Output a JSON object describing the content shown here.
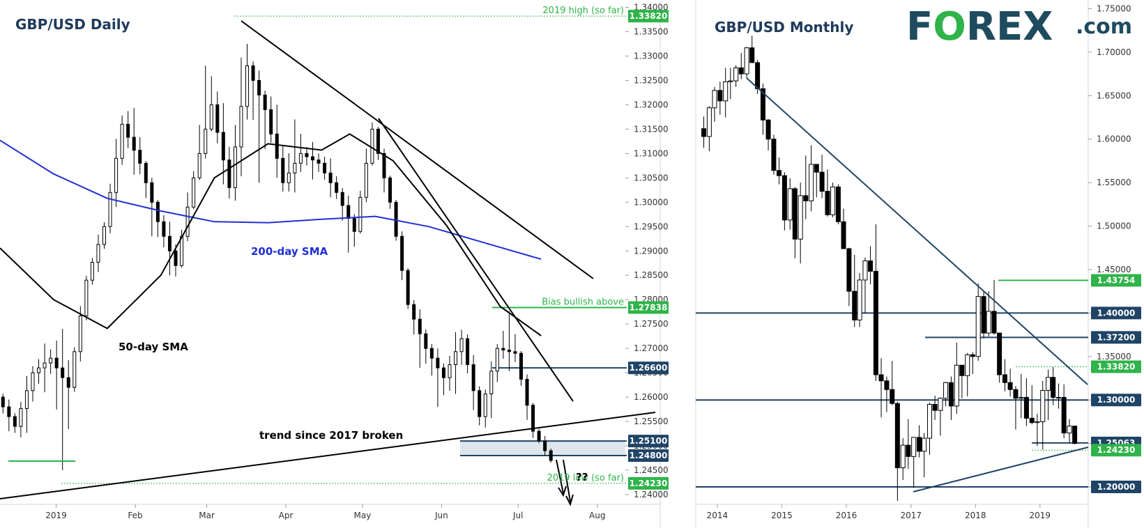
{
  "brand": {
    "logo_text": "FOREX",
    "logo_suffix": ".com",
    "color": "#1f4b5e",
    "accent": "#2fb34a"
  },
  "colors": {
    "green": "#2fb34a",
    "navy": "#1f4466",
    "sma200": "#1f2fd4",
    "black": "#000000",
    "support_zone": "#dfe5ec"
  },
  "chart_data": [
    {
      "type": "candlestick",
      "title": "GBP/USD Daily",
      "x_ticks": [
        "2019",
        "Feb",
        "Mar",
        "Apr",
        "May",
        "Jun",
        "Jul",
        "Aug"
      ],
      "y_ticks": [
        "1.34000",
        "1.33500",
        "1.33000",
        "1.32500",
        "1.32000",
        "1.31500",
        "1.31000",
        "1.30500",
        "1.30000",
        "1.29500",
        "1.29000",
        "1.28500",
        "1.28000",
        "1.27500",
        "1.27000",
        "1.26500",
        "1.26000",
        "1.25500",
        "1.25000",
        "1.24500",
        "1.24000"
      ],
      "ylim": [
        1.238,
        1.3415
      ],
      "date_range": [
        "2018-12-10",
        "2019-08-12"
      ],
      "price_labels": [
        {
          "value": 1.3382,
          "label": "1.33820",
          "note": "2019 high (so far)",
          "color": "green"
        },
        {
          "value": 1.27838,
          "label": "1.27838",
          "note": "Bias bullish above",
          "color": "green"
        },
        {
          "value": 1.266,
          "label": "1.26600",
          "note": "",
          "color": "navy"
        },
        {
          "value": 1.251,
          "label": "1.25100",
          "note": "",
          "color": "navy"
        },
        {
          "value": 1.248,
          "label": "1.24800",
          "note": "",
          "color": "navy"
        },
        {
          "value": 1.2423,
          "label": "1.24230",
          "note": "2019 low (so far)",
          "color": "green"
        }
      ],
      "annotations": [
        "200-day SMA",
        "50-day SMA",
        "trend since 2017 broken",
        "??"
      ],
      "sma200": [
        [
          "2018-12-10",
          1.3127
        ],
        [
          "2018-12-31",
          1.3058
        ],
        [
          "2019-01-21",
          1.3008
        ],
        [
          "2019-02-11",
          1.2982
        ],
        [
          "2019-03-04",
          1.296
        ],
        [
          "2019-03-25",
          1.2958
        ],
        [
          "2019-04-15",
          1.2965
        ],
        [
          "2019-05-06",
          1.2971
        ],
        [
          "2019-05-27",
          1.295
        ],
        [
          "2019-06-17",
          1.2918
        ],
        [
          "2019-07-10",
          1.2883
        ]
      ],
      "sma50": [
        [
          "2018-12-10",
          1.2906
        ],
        [
          "2018-12-31",
          1.28
        ],
        [
          "2019-01-21",
          1.2741
        ],
        [
          "2019-02-11",
          1.285
        ],
        [
          "2019-03-04",
          1.305
        ],
        [
          "2019-03-25",
          1.312
        ],
        [
          "2019-04-15",
          1.3107
        ],
        [
          "2019-04-26",
          1.314
        ],
        [
          "2019-05-13",
          1.3085
        ],
        [
          "2019-06-03",
          1.2952
        ],
        [
          "2019-06-24",
          1.2786
        ],
        [
          "2019-07-10",
          1.2726
        ]
      ],
      "support_zone": [
        1.248,
        1.251
      ],
      "candles": [
        [
          "2018-12-10",
          1.26,
          1.2615,
          1.251,
          1.254
        ],
        [
          "2018-12-17",
          1.254,
          1.268,
          1.249,
          1.265
        ],
        [
          "2018-12-24",
          1.265,
          1.272,
          1.26,
          1.268
        ],
        [
          "2018-12-31",
          1.268,
          1.276,
          1.243,
          1.262
        ],
        [
          "2019-01-07",
          1.262,
          1.286,
          1.26,
          1.284
        ],
        [
          "2019-01-14",
          1.284,
          1.297,
          1.282,
          1.295
        ],
        [
          "2019-01-21",
          1.295,
          1.32,
          1.292,
          1.316
        ],
        [
          "2019-01-28",
          1.316,
          1.322,
          1.303,
          1.308
        ],
        [
          "2019-02-04",
          1.308,
          1.309,
          1.289,
          1.296
        ],
        [
          "2019-02-11",
          1.296,
          1.299,
          1.282,
          1.287
        ],
        [
          "2019-02-18",
          1.287,
          1.308,
          1.286,
          1.305
        ],
        [
          "2019-02-25",
          1.305,
          1.333,
          1.304,
          1.32
        ],
        [
          "2019-03-04",
          1.32,
          1.326,
          1.298,
          1.303
        ],
        [
          "2019-03-11",
          1.303,
          1.338,
          1.297,
          1.328
        ],
        [
          "2019-03-18",
          1.328,
          1.33,
          1.301,
          1.319
        ],
        [
          "2019-03-25",
          1.319,
          1.325,
          1.3,
          1.304
        ],
        [
          "2019-04-01",
          1.304,
          1.319,
          1.3,
          1.31
        ],
        [
          "2019-04-08",
          1.31,
          1.313,
          1.304,
          1.308
        ],
        [
          "2019-04-15",
          1.308,
          1.311,
          1.299,
          1.302
        ],
        [
          "2019-04-22",
          1.302,
          1.304,
          1.287,
          1.294
        ],
        [
          "2019-04-29",
          1.294,
          1.318,
          1.293,
          1.315
        ],
        [
          "2019-05-06",
          1.315,
          1.316,
          1.297,
          1.3
        ],
        [
          "2019-05-13",
          1.3,
          1.301,
          1.277,
          1.279
        ],
        [
          "2019-05-20",
          1.279,
          1.281,
          1.263,
          1.27
        ],
        [
          "2019-05-27",
          1.27,
          1.272,
          1.256,
          1.264
        ],
        [
          "2019-06-03",
          1.264,
          1.276,
          1.258,
          1.272
        ],
        [
          "2019-06-10",
          1.272,
          1.274,
          1.252,
          1.256
        ],
        [
          "2019-06-17",
          1.256,
          1.272,
          1.251,
          1.27
        ],
        [
          "2019-06-24",
          1.27,
          1.278,
          1.265,
          1.269
        ],
        [
          "2019-07-01",
          1.269,
          1.27,
          1.25,
          1.253
        ],
        [
          "2019-07-08",
          1.253,
          1.254,
          1.246,
          1.247
        ]
      ]
    },
    {
      "type": "candlestick",
      "title": "GBP/USD Monthly",
      "x_ticks": [
        "2014",
        "2015",
        "2016",
        "2017",
        "2018",
        "2019"
      ],
      "y_ticks": [
        "1.75000",
        "1.70000",
        "1.65000",
        "1.60000",
        "1.55000",
        "1.50000",
        "1.45000",
        "1.40000",
        "1.35000",
        "1.30000",
        "1.25000",
        "1.20000"
      ],
      "ylim": [
        1.18,
        1.76
      ],
      "date_range": [
        "2013-09-01",
        "2019-10-01"
      ],
      "price_labels": [
        {
          "value": 1.43754,
          "label": "1.43754",
          "color": "green"
        },
        {
          "value": 1.4,
          "label": "1.40000",
          "color": "navy"
        },
        {
          "value": 1.372,
          "label": "1.37200",
          "color": "navy"
        },
        {
          "value": 1.3382,
          "label": "1.33820",
          "color": "green"
        },
        {
          "value": 1.3,
          "label": "1.30000",
          "color": "navy"
        },
        {
          "value": 1.25063,
          "label": "1.25063",
          "color": "navy"
        },
        {
          "value": 1.2423,
          "label": "1.24230",
          "color": "green"
        },
        {
          "value": 1.2,
          "label": "1.20000",
          "color": "navy"
        }
      ],
      "candles": [
        [
          "2013-10-01",
          1.612,
          1.626,
          1.59,
          1.603
        ],
        [
          "2013-11-01",
          1.603,
          1.638,
          1.586,
          1.636
        ],
        [
          "2013-12-01",
          1.636,
          1.66,
          1.62,
          1.656
        ],
        [
          "2014-01-01",
          1.656,
          1.666,
          1.628,
          1.644
        ],
        [
          "2014-02-01",
          1.644,
          1.682,
          1.625,
          1.666
        ],
        [
          "2014-03-01",
          1.666,
          1.682,
          1.646,
          1.667
        ],
        [
          "2014-04-01",
          1.667,
          1.685,
          1.66,
          1.682
        ],
        [
          "2014-05-01",
          1.682,
          1.699,
          1.669,
          1.675
        ],
        [
          "2014-06-01",
          1.675,
          1.706,
          1.67,
          1.705
        ],
        [
          "2014-07-01",
          1.705,
          1.719,
          1.688,
          1.688
        ],
        [
          "2014-08-01",
          1.688,
          1.691,
          1.652,
          1.658
        ],
        [
          "2014-09-01",
          1.658,
          1.664,
          1.605,
          1.622
        ],
        [
          "2014-10-01",
          1.622,
          1.623,
          1.587,
          1.6
        ],
        [
          "2014-11-01",
          1.6,
          1.605,
          1.559,
          1.564
        ],
        [
          "2014-12-01",
          1.564,
          1.579,
          1.548,
          1.558
        ],
        [
          "2015-01-01",
          1.558,
          1.562,
          1.495,
          1.507
        ],
        [
          "2015-02-01",
          1.507,
          1.555,
          1.496,
          1.543
        ],
        [
          "2015-03-01",
          1.543,
          1.545,
          1.463,
          1.485
        ],
        [
          "2015-04-01",
          1.485,
          1.55,
          1.457,
          1.535
        ],
        [
          "2015-05-01",
          1.535,
          1.581,
          1.508,
          1.529
        ],
        [
          "2015-06-01",
          1.529,
          1.593,
          1.517,
          1.571
        ],
        [
          "2015-07-01",
          1.571,
          1.568,
          1.533,
          1.562
        ],
        [
          "2015-08-01",
          1.562,
          1.582,
          1.532,
          1.54
        ],
        [
          "2015-09-01",
          1.54,
          1.565,
          1.511,
          1.513
        ],
        [
          "2015-10-01",
          1.513,
          1.55,
          1.51,
          1.545
        ],
        [
          "2015-11-01",
          1.545,
          1.548,
          1.502,
          1.505
        ],
        [
          "2015-12-01",
          1.505,
          1.52,
          1.474,
          1.474
        ],
        [
          "2016-01-01",
          1.474,
          1.475,
          1.408,
          1.425
        ],
        [
          "2016-02-01",
          1.425,
          1.467,
          1.384,
          1.392
        ],
        [
          "2016-03-01",
          1.392,
          1.446,
          1.384,
          1.438
        ],
        [
          "2016-04-01",
          1.438,
          1.464,
          1.4,
          1.46
        ],
        [
          "2016-05-01",
          1.46,
          1.477,
          1.433,
          1.448
        ],
        [
          "2016-06-01",
          1.448,
          1.502,
          1.322,
          1.329
        ],
        [
          "2016-07-01",
          1.329,
          1.348,
          1.28,
          1.322
        ],
        [
          "2016-08-01",
          1.322,
          1.327,
          1.286,
          1.312
        ],
        [
          "2016-09-01",
          1.312,
          1.345,
          1.294,
          1.296
        ],
        [
          "2016-10-01",
          1.296,
          1.298,
          1.184,
          1.222
        ],
        [
          "2016-11-01",
          1.222,
          1.256,
          1.208,
          1.248
        ],
        [
          "2016-12-01",
          1.248,
          1.278,
          1.221,
          1.235
        ],
        [
          "2017-01-01",
          1.235,
          1.257,
          1.199,
          1.257
        ],
        [
          "2017-02-01",
          1.257,
          1.271,
          1.234,
          1.241
        ],
        [
          "2017-03-01",
          1.241,
          1.262,
          1.211,
          1.256
        ],
        [
          "2017-04-01",
          1.256,
          1.297,
          1.237,
          1.295
        ],
        [
          "2017-05-01",
          1.295,
          1.305,
          1.277,
          1.288
        ],
        [
          "2017-06-01",
          1.288,
          1.303,
          1.259,
          1.302
        ],
        [
          "2017-07-01",
          1.302,
          1.321,
          1.293,
          1.32
        ],
        [
          "2017-08-01",
          1.32,
          1.327,
          1.277,
          1.293
        ],
        [
          "2017-09-01",
          1.293,
          1.366,
          1.284,
          1.34
        ],
        [
          "2017-10-01",
          1.34,
          1.335,
          1.302,
          1.328
        ],
        [
          "2017-11-01",
          1.328,
          1.354,
          1.304,
          1.352
        ],
        [
          "2017-12-01",
          1.352,
          1.355,
          1.33,
          1.35
        ],
        [
          "2018-01-01",
          1.35,
          1.434,
          1.345,
          1.419
        ],
        [
          "2018-02-01",
          1.419,
          1.425,
          1.371,
          1.377
        ],
        [
          "2018-03-01",
          1.377,
          1.425,
          1.373,
          1.402
        ],
        [
          "2018-04-01",
          1.402,
          1.438,
          1.375,
          1.377
        ],
        [
          "2018-05-01",
          1.377,
          1.377,
          1.32,
          1.329
        ],
        [
          "2018-06-01",
          1.329,
          1.347,
          1.31,
          1.32
        ],
        [
          "2018-07-01",
          1.32,
          1.336,
          1.304,
          1.312
        ],
        [
          "2018-08-01",
          1.312,
          1.316,
          1.266,
          1.302
        ],
        [
          "2018-09-01",
          1.302,
          1.33,
          1.279,
          1.303
        ],
        [
          "2018-10-01",
          1.303,
          1.325,
          1.27,
          1.279
        ],
        [
          "2018-11-01",
          1.279,
          1.317,
          1.272,
          1.274
        ],
        [
          "2018-12-01",
          1.274,
          1.284,
          1.247,
          1.275
        ],
        [
          "2019-01-01",
          1.275,
          1.322,
          1.243,
          1.311
        ],
        [
          "2019-02-01",
          1.311,
          1.335,
          1.277,
          1.326
        ],
        [
          "2019-03-01",
          1.326,
          1.338,
          1.294,
          1.303
        ],
        [
          "2019-04-01",
          1.303,
          1.319,
          1.29,
          1.303
        ],
        [
          "2019-05-01",
          1.303,
          1.318,
          1.256,
          1.262
        ],
        [
          "2019-06-01",
          1.262,
          1.278,
          1.251,
          1.27
        ],
        [
          "2019-07-01",
          1.27,
          1.27,
          1.249,
          1.25
        ]
      ]
    }
  ]
}
